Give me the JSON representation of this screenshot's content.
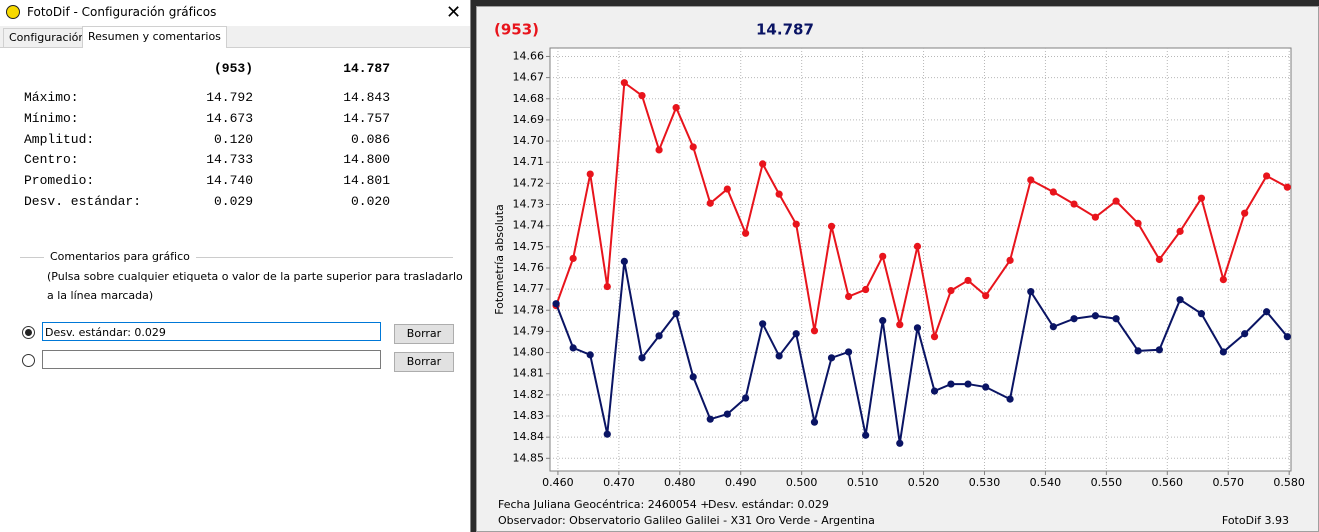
{
  "window": {
    "title": "FotoDif - Configuración gráficos",
    "tabs": [
      "Configuración",
      "Resumen y comentarios"
    ]
  },
  "summary": {
    "columns": [
      "(953)",
      "14.787"
    ],
    "rows": [
      {
        "label": "Máximo:",
        "values": [
          "14.792",
          "14.843"
        ]
      },
      {
        "label": "Mínimo:",
        "values": [
          "14.673",
          "14.757"
        ]
      },
      {
        "label": "Amplitud:",
        "values": [
          "0.120",
          "0.086"
        ]
      },
      {
        "label": "Centro:",
        "values": [
          "14.733",
          "14.800"
        ]
      },
      {
        "label": "Promedio:",
        "values": [
          "14.740",
          "14.801"
        ]
      },
      {
        "label": "Desv. estándar:",
        "values": [
          "0.029",
          "0.020"
        ]
      }
    ]
  },
  "comments": {
    "legend": "Comentarios para gráfico",
    "hint": [
      "(Pulsa sobre cualquier etiqueta o valor de la parte superior para trasladarlo",
      "a la línea marcada)"
    ],
    "lines": [
      "Desv. estándar: 0.029"
    ],
    "button": "Borrar"
  },
  "chart_data": {
    "type": "line",
    "y_label": "Fotometría absoluta",
    "x": [
      0.4597,
      0.4625,
      0.4653,
      0.4681,
      0.4709,
      0.4738,
      0.4766,
      0.4794,
      0.4822,
      0.485,
      0.4878,
      0.4908,
      0.4936,
      0.4963,
      0.4991,
      0.5021,
      0.5049,
      0.5077,
      0.5105,
      0.5133,
      0.5161,
      0.519,
      0.5218,
      0.5245,
      0.5273,
      0.5302,
      0.5342,
      0.5376,
      0.5413,
      0.5447,
      0.5482,
      0.5516,
      0.5552,
      0.5587,
      0.5621,
      0.5656,
      0.5692,
      0.5727,
      0.5763,
      0.5797
    ],
    "series": [
      {
        "name": "(953)",
        "color": "#e8141c",
        "values": [
          14.7778,
          14.7555,
          14.7156,
          14.7688,
          14.6724,
          14.6785,
          14.7042,
          14.6842,
          14.7028,
          14.7294,
          14.7227,
          14.7436,
          14.7108,
          14.7251,
          14.7393,
          14.7897,
          14.7403,
          14.7735,
          14.7702,
          14.7545,
          14.7868,
          14.7498,
          14.7925,
          14.7707,
          14.7659,
          14.7731,
          14.7564,
          14.7184,
          14.7241,
          14.7298,
          14.736,
          14.7284,
          14.7389,
          14.756,
          14.7427,
          14.727,
          14.7655,
          14.7341,
          14.7165,
          14.7218
        ]
      },
      {
        "name": "14.787",
        "color": "#0a1464",
        "values": [
          14.7769,
          14.7978,
          14.8011,
          14.8386,
          14.7569,
          14.8025,
          14.7921,
          14.7816,
          14.8115,
          14.8315,
          14.8291,
          14.8215,
          14.7864,
          14.8016,
          14.7911,
          14.8329,
          14.8025,
          14.7997,
          14.8391,
          14.7849,
          14.8429,
          14.7883,
          14.8182,
          14.8149,
          14.8149,
          14.8163,
          14.822,
          14.7712,
          14.7878,
          14.784,
          14.7826,
          14.784,
          14.7992,
          14.7987,
          14.775,
          14.7816,
          14.7997,
          14.7911,
          14.7807,
          14.7925
        ]
      }
    ],
    "xlim": [
      0.4587,
      0.5803
    ],
    "ylim": [
      14.656,
      14.856
    ],
    "y_inverted": true,
    "grid": true,
    "xticks": [
      {
        "value": 0.46,
        "label": "0.460"
      },
      {
        "value": 0.47,
        "label": "0.470"
      },
      {
        "value": 0.48,
        "label": "0.480"
      },
      {
        "value": 0.49,
        "label": "0.490"
      },
      {
        "value": 0.5,
        "label": "0.500"
      },
      {
        "value": 0.51,
        "label": "0.510"
      },
      {
        "value": 0.52,
        "label": "0.520"
      },
      {
        "value": 0.53,
        "label": "0.530"
      },
      {
        "value": 0.54,
        "label": "0.540"
      },
      {
        "value": 0.55,
        "label": "0.550"
      },
      {
        "value": 0.56,
        "label": "0.560"
      },
      {
        "value": 0.57,
        "label": "0.570"
      },
      {
        "value": 0.58,
        "label": "0.580"
      }
    ],
    "yticks": [
      {
        "value": 14.66,
        "label": "14.66"
      },
      {
        "value": 14.67,
        "label": "14.67"
      },
      {
        "value": 14.68,
        "label": "14.68"
      },
      {
        "value": 14.69,
        "label": "14.69"
      },
      {
        "value": 14.7,
        "label": "14.70"
      },
      {
        "value": 14.71,
        "label": "14.71"
      },
      {
        "value": 14.72,
        "label": "14.72"
      },
      {
        "value": 14.73,
        "label": "14.73"
      },
      {
        "value": 14.74,
        "label": "14.74"
      },
      {
        "value": 14.75,
        "label": "14.75"
      },
      {
        "value": 14.76,
        "label": "14.76"
      },
      {
        "value": 14.77,
        "label": "14.77"
      },
      {
        "value": 14.78,
        "label": "14.78"
      },
      {
        "value": 14.79,
        "label": "14.79"
      },
      {
        "value": 14.8,
        "label": "14.80"
      },
      {
        "value": 14.81,
        "label": "14.81"
      },
      {
        "value": 14.82,
        "label": "14.82"
      },
      {
        "value": 14.83,
        "label": "14.83"
      },
      {
        "value": 14.84,
        "label": "14.84"
      },
      {
        "value": 14.85,
        "label": "14.85"
      }
    ],
    "notes": [
      "Fecha Juliana Geocéntrica: 2460054 +",
      "Desv. estándar: 0.029",
      "Observador: Observatorio Galileo Galilei - X31 Oro Verde - Argentina",
      "FotoDif 3.93"
    ]
  }
}
